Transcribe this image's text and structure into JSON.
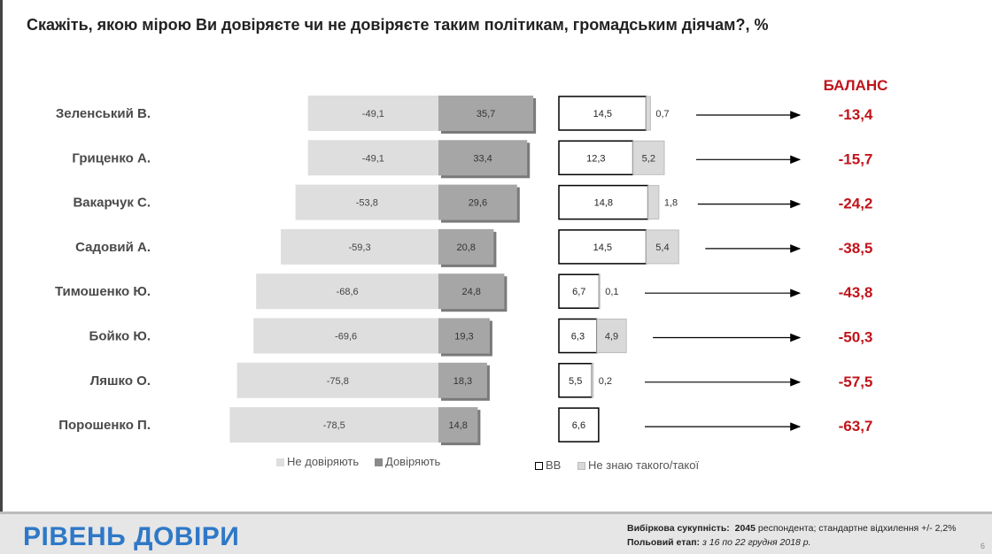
{
  "title": "Скажіть,  якою мірою Ви довіряєте чи не довіряєте таким політикам, громадським діячам?, %",
  "section_title": "РІВЕНЬ ДОВІРИ",
  "footer": {
    "sample_label": "Вибіркова сукупність:",
    "sample_value": "2045",
    "sample_text": "респондента; стандартне  відхилення +/- 2,2%",
    "field_label": "Польовий етап:",
    "field_value": "з 16 по 22 грудня 2018 р."
  },
  "page_number": "6",
  "legend": {
    "distrust": "Не довіряють",
    "trust": "Довіряють",
    "vv": "ВВ",
    "unknown": "Не знаю такого/такої"
  },
  "balance_header": "БАЛАНС",
  "colors": {
    "distrust": "#dedede",
    "trust": "#a6a6a6",
    "vv_border": "#000000",
    "unknown": "#d9d9d9",
    "balance": "#c0141b",
    "section_title": "#2e78c7"
  },
  "chart_data": {
    "type": "bar",
    "categories": [
      "Зеленський В.",
      "Гриценко А.",
      "Вакарчук С.",
      "Садовий А.",
      "Тимошенко Ю.",
      "Бойко Ю.",
      "Ляшко О.",
      "Порошенко П."
    ],
    "series": [
      {
        "name": "Не довіряють",
        "values": [
          -49.1,
          -49.1,
          -53.8,
          -59.3,
          -68.6,
          -69.6,
          -75.8,
          -78.5
        ],
        "labels": [
          "-49,1",
          "-49,1",
          "-53,8",
          "-59,3",
          "-68,6",
          "-69,6",
          "-75,8",
          "-78,5"
        ]
      },
      {
        "name": "Довіряють",
        "values": [
          35.7,
          33.4,
          29.6,
          20.8,
          24.8,
          19.3,
          18.3,
          14.8
        ],
        "labels": [
          "35,7",
          "33,4",
          "29,6",
          "20,8",
          "24,8",
          "19,3",
          "18,3",
          "14,8"
        ]
      },
      {
        "name": "ВВ",
        "values": [
          14.5,
          12.3,
          14.8,
          14.5,
          6.7,
          6.3,
          5.5,
          6.6
        ],
        "labels": [
          "14,5",
          "12,3",
          "14,8",
          "14,5",
          "6,7",
          "6,3",
          "5,5",
          "6,6"
        ]
      },
      {
        "name": "Не знаю такого/такої",
        "values": [
          0.7,
          5.2,
          1.8,
          5.4,
          0.1,
          4.9,
          0.2,
          0
        ],
        "labels": [
          "0,7",
          "5,2",
          "1,8",
          "5,4",
          "0,1",
          "4,9",
          "0,2",
          ""
        ]
      }
    ],
    "balance": {
      "values": [
        -13.4,
        -15.7,
        -24.2,
        -38.5,
        -43.8,
        -50.3,
        -57.5,
        -63.7
      ],
      "labels": [
        "-13,4",
        "-15,7",
        "-24,2",
        "-38,5",
        "-43,8",
        "-50,3",
        "-57,5",
        "-63,7"
      ]
    },
    "legend_position": "bottom"
  }
}
